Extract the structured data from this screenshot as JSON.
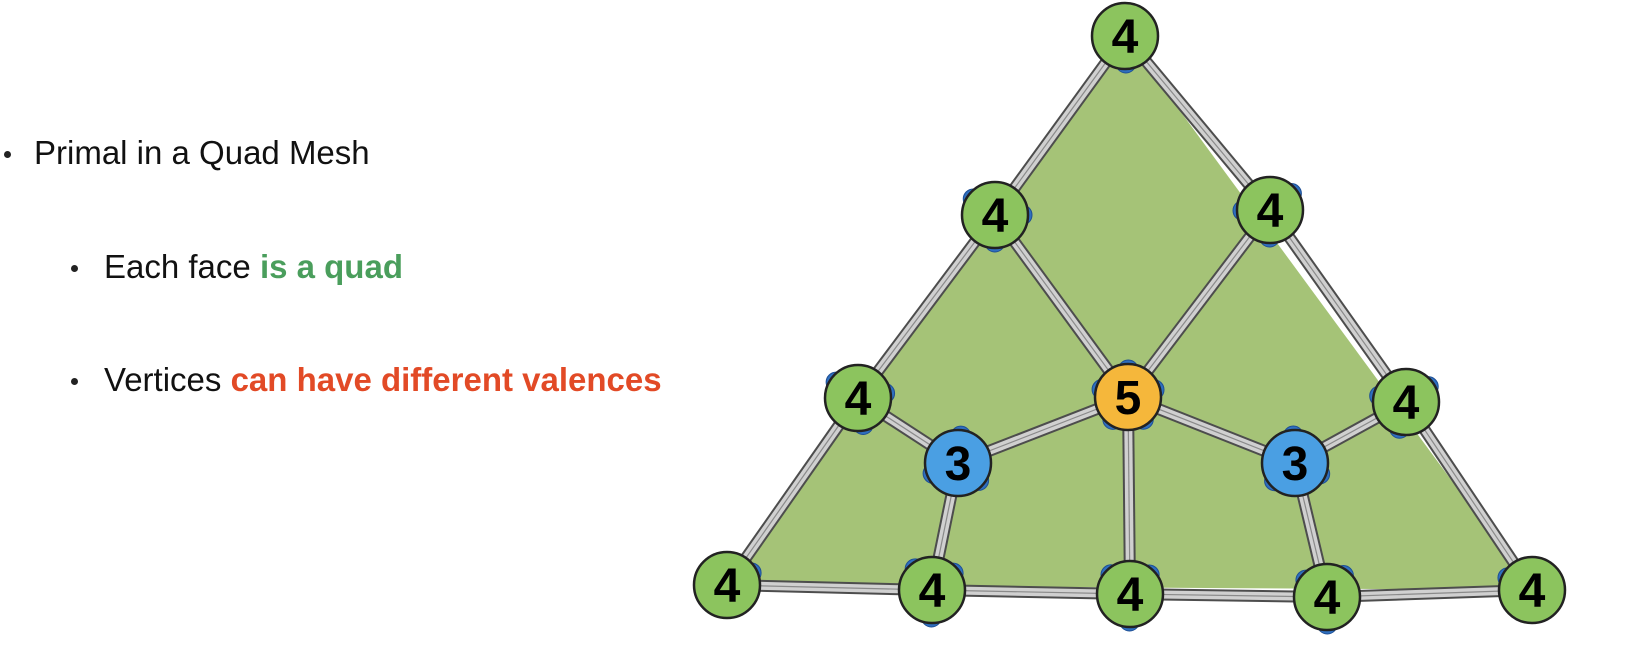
{
  "bullets": {
    "primary": "Primal in a Quad Mesh",
    "face_prefix": "Each face ",
    "face_highlight": "is a quad",
    "vertex_prefix": "Vertices ",
    "vertex_highlight": "can have different valences"
  },
  "colors": {
    "face_fill": "#a5c377",
    "edge_fill": "#d0d0d0",
    "edge_stroke": "#4d4d4d",
    "valence_4": "#8cc45e",
    "valence_3": "#4a9fe3",
    "valence_5": "#f5b73b",
    "corner_dot": "#2f6fbf",
    "highlight_green": "#4a9e5c",
    "highlight_red": "#e24a26"
  },
  "mesh": {
    "vertices": [
      {
        "id": "top",
        "valence": "4"
      },
      {
        "id": "upper-left",
        "valence": "4"
      },
      {
        "id": "upper-right",
        "valence": "4"
      },
      {
        "id": "mid-left",
        "valence": "4"
      },
      {
        "id": "center",
        "valence": "5"
      },
      {
        "id": "mid-right",
        "valence": "4"
      },
      {
        "id": "inner-left",
        "valence": "3"
      },
      {
        "id": "inner-right",
        "valence": "3"
      },
      {
        "id": "bottom-left",
        "valence": "4"
      },
      {
        "id": "bottom-2",
        "valence": "4"
      },
      {
        "id": "bottom-mid",
        "valence": "4"
      },
      {
        "id": "bottom-4",
        "valence": "4"
      },
      {
        "id": "bottom-right",
        "valence": "4"
      }
    ],
    "edges": [
      [
        "top",
        "upper-left"
      ],
      [
        "top",
        "upper-right"
      ],
      [
        "upper-left",
        "mid-left"
      ],
      [
        "mid-left",
        "bottom-left"
      ],
      [
        "upper-right",
        "mid-right"
      ],
      [
        "mid-right",
        "bottom-right"
      ],
      [
        "bottom-left",
        "bottom-2"
      ],
      [
        "bottom-2",
        "bottom-mid"
      ],
      [
        "bottom-mid",
        "bottom-4"
      ],
      [
        "bottom-4",
        "bottom-right"
      ],
      [
        "upper-left",
        "center"
      ],
      [
        "upper-right",
        "center"
      ],
      [
        "center",
        "inner-left"
      ],
      [
        "center",
        "inner-right"
      ],
      [
        "center",
        "bottom-mid"
      ],
      [
        "inner-left",
        "mid-left"
      ],
      [
        "inner-left",
        "bottom-2"
      ],
      [
        "inner-right",
        "mid-right"
      ],
      [
        "inner-right",
        "bottom-4"
      ]
    ]
  }
}
